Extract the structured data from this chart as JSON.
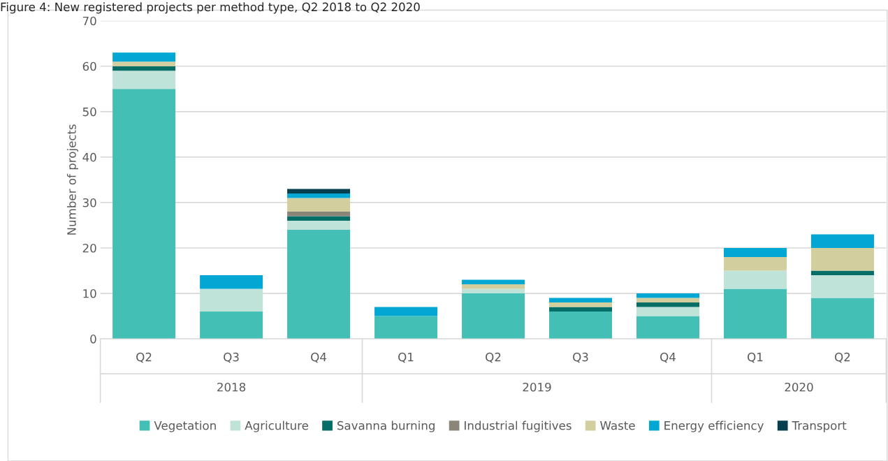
{
  "chart_data": {
    "type": "bar",
    "stacked": true,
    "title": "Figure 4: New registered projects per method type, Q2 2018 to Q2 2020",
    "ylabel": "Number of projects",
    "categories": [
      "Q2",
      "Q3",
      "Q4",
      "Q1",
      "Q2",
      "Q3",
      "Q4",
      "Q1",
      "Q2"
    ],
    "annotations": [
      "2018",
      "2019",
      "2020"
    ],
    "series": [
      {
        "name": "Vegetation",
        "color": "#43bfb5",
        "values": [
          55,
          6,
          24,
          5,
          10,
          6,
          5,
          11,
          9
        ]
      },
      {
        "name": "Agriculture",
        "color": "#c0e3d9",
        "values": [
          4,
          5,
          2,
          0,
          1,
          0,
          2,
          4,
          5
        ]
      },
      {
        "name": "Savanna burning",
        "color": "#056e66",
        "values": [
          1,
          0,
          1,
          0,
          0,
          1,
          1,
          0,
          1
        ]
      },
      {
        "name": "Industrial fugitives",
        "color": "#8b8579",
        "values": [
          0,
          0,
          1,
          0,
          0,
          0,
          0,
          0,
          0
        ]
      },
      {
        "name": "Waste",
        "color": "#d3ce9e",
        "values": [
          1,
          0,
          3,
          0,
          1,
          1,
          1,
          3,
          5
        ]
      },
      {
        "name": "Energy efficiency",
        "color": "#02a8d3",
        "values": [
          2,
          3,
          1,
          2,
          1,
          1,
          1,
          2,
          3
        ]
      },
      {
        "name": "Transport",
        "color": "#063f4e",
        "values": [
          0,
          0,
          1,
          0,
          0,
          0,
          0,
          0,
          0
        ]
      }
    ],
    "ylim": [
      0,
      70
    ],
    "yticks": [
      0,
      10,
      20,
      30,
      40,
      50,
      60,
      70
    ],
    "grid": "y",
    "legend": "bottom"
  }
}
